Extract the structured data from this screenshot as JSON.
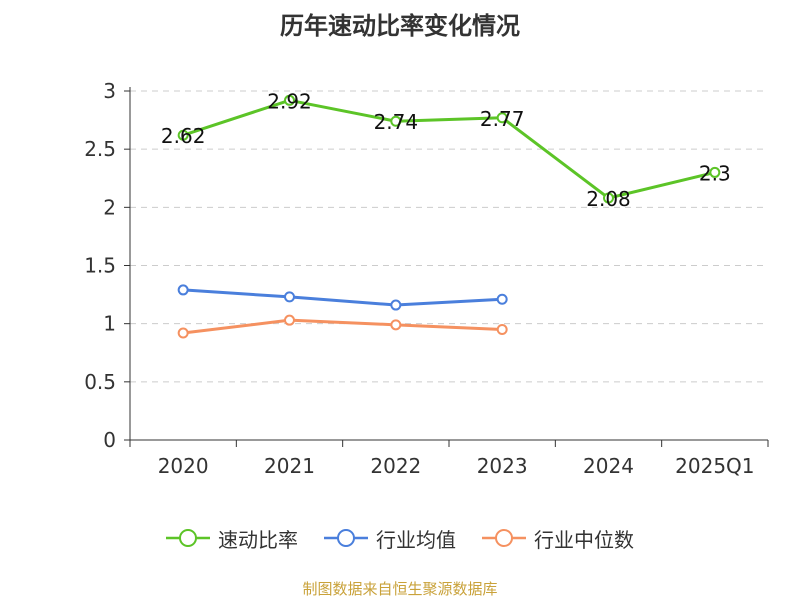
{
  "chart_data": {
    "type": "line",
    "title": "历年速动比率变化情况",
    "categories": [
      "2020",
      "2021",
      "2022",
      "2023",
      "2024",
      "2025Q1"
    ],
    "ylim": [
      0,
      3
    ],
    "yticks": [
      0,
      0.5,
      1,
      1.5,
      2,
      2.5,
      3
    ],
    "ytick_labels": [
      "0",
      "0.5",
      "1",
      "1.5",
      "2",
      "2.5",
      "3"
    ],
    "grid": true,
    "legend_position": "bottom",
    "series": [
      {
        "name": "速动比率",
        "color": "#5cc427",
        "values": [
          2.62,
          2.92,
          2.74,
          2.77,
          2.08,
          2.3
        ],
        "labels": [
          "2.62",
          "2.92",
          "2.74",
          "2.77",
          "2.08",
          "2.3"
        ]
      },
      {
        "name": "行业均值",
        "color": "#4a7fdc",
        "values": [
          1.29,
          1.23,
          1.16,
          1.21,
          null,
          null
        ]
      },
      {
        "name": "行业中位数",
        "color": "#f59160",
        "values": [
          0.92,
          1.03,
          0.99,
          0.95,
          null,
          null
        ]
      }
    ]
  },
  "source_note": "制图数据来自恒生聚源数据库"
}
